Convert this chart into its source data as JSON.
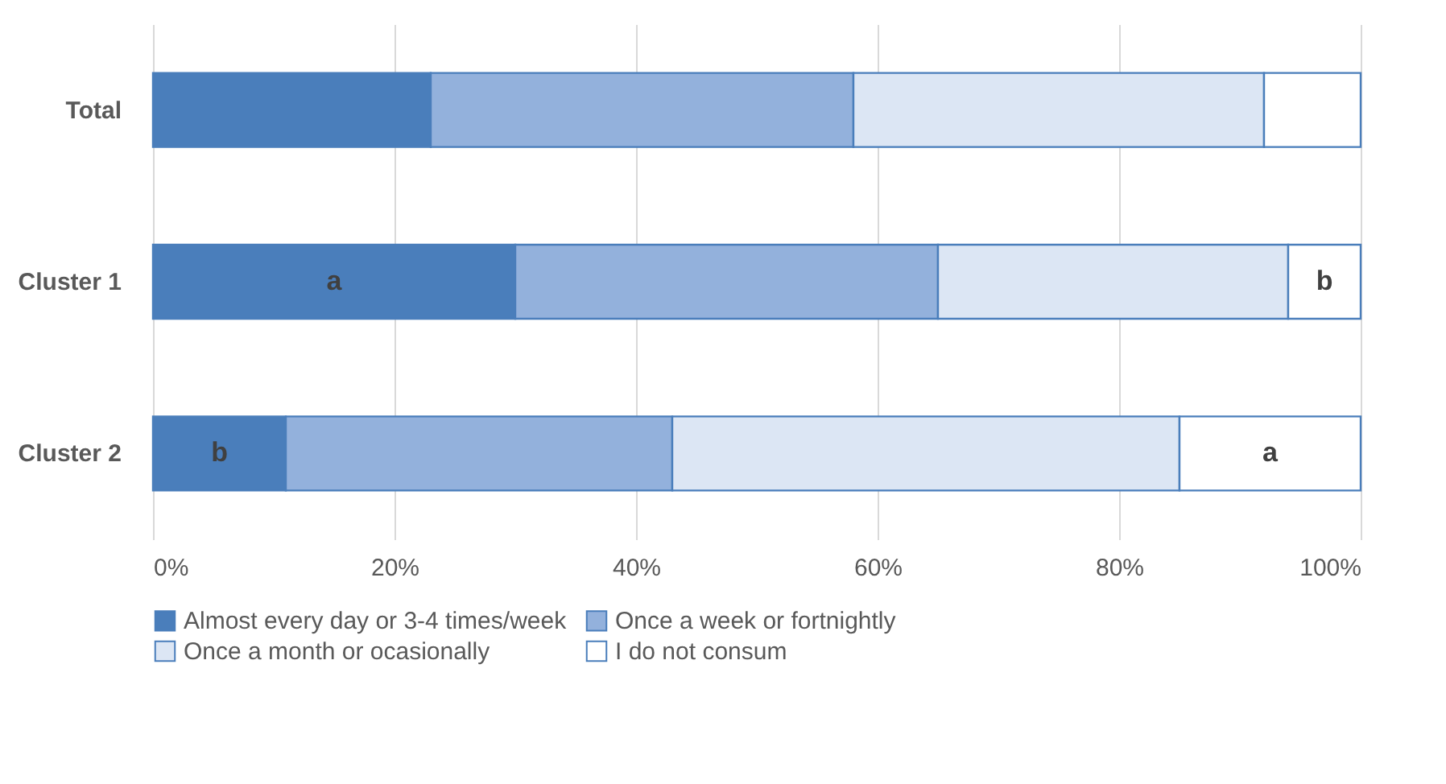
{
  "chart_data": {
    "type": "bar",
    "orientation": "horizontal",
    "stacked": true,
    "categories": [
      "Total",
      "Cluster 1",
      "Cluster 2"
    ],
    "series": [
      {
        "name": "Almost every day or 3-4 times/week",
        "color": "#4a7ebb",
        "values": [
          23,
          30,
          11
        ],
        "value_labels": [
          null,
          "a",
          "b"
        ]
      },
      {
        "name": "Once a week or fortnightly",
        "color": "#93b1dc",
        "values": [
          35,
          35,
          32
        ]
      },
      {
        "name": "Once a month or ocasionally",
        "color": "#dce6f4",
        "values": [
          34,
          29,
          42
        ]
      },
      {
        "name": "I do not consum",
        "color": "#ffffff",
        "values": [
          8,
          6,
          15
        ],
        "value_labels": [
          null,
          "b",
          "a"
        ]
      }
    ],
    "xlim": [
      0,
      100
    ],
    "xticks": [
      {
        "value": 0,
        "label": "0%"
      },
      {
        "value": 20,
        "label": "20%"
      },
      {
        "value": 40,
        "label": "40%"
      },
      {
        "value": 60,
        "label": "60%"
      },
      {
        "value": 80,
        "label": "80%"
      },
      {
        "value": 100,
        "label": "100%"
      }
    ],
    "grid": "x",
    "legend": "bottom"
  }
}
